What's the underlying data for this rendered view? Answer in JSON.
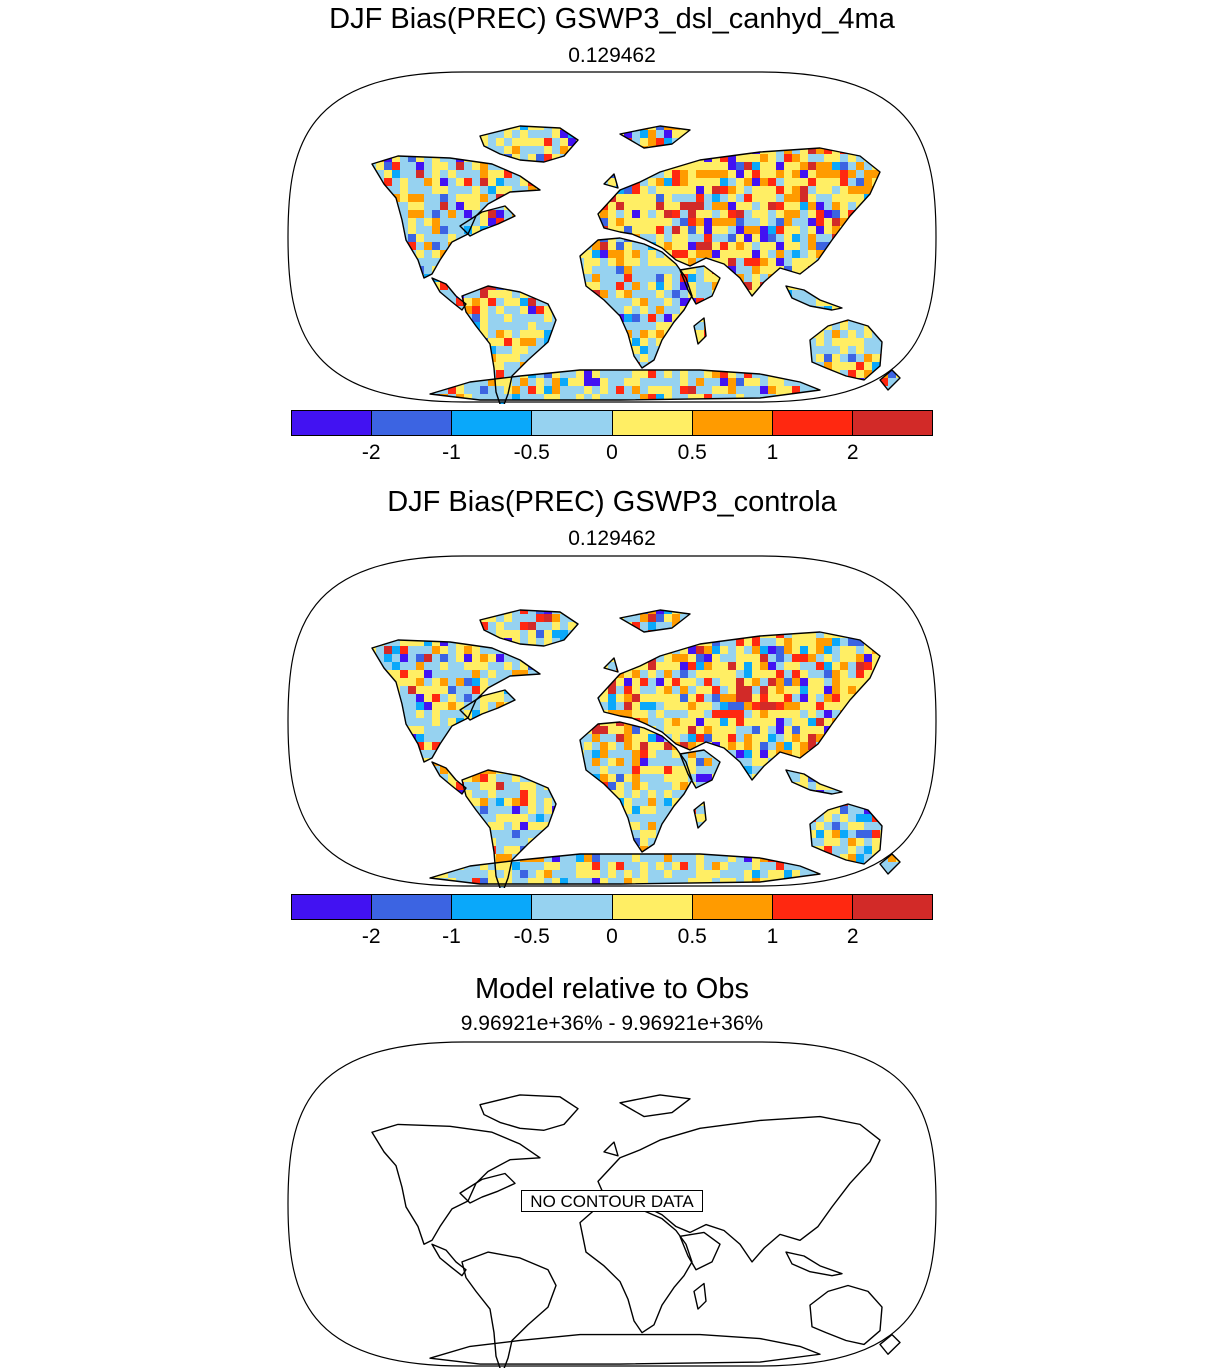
{
  "panels": [
    {
      "title": "DJF Bias(PREC) GSWP3_dsl_canhyd_4ma",
      "subtitle": "0.129462"
    },
    {
      "title": "DJF Bias(PREC) GSWP3_controla",
      "subtitle": "0.129462"
    },
    {
      "title": "Model relative to Obs",
      "subtitle": "9.96921e+36% - 9.96921e+36%",
      "no_data_label": "NO CONTOUR DATA"
    }
  ],
  "colorbar": {
    "colors": [
      "#4212f2",
      "#3c64e2",
      "#0aa8fa",
      "#96d2f0",
      "#ffee64",
      "#ff9b00",
      "#ff2810",
      "#d22a28"
    ],
    "tick_labels": [
      "-2",
      "-1",
      "-0.5",
      "0",
      "0.5",
      "1",
      "2"
    ]
  }
}
